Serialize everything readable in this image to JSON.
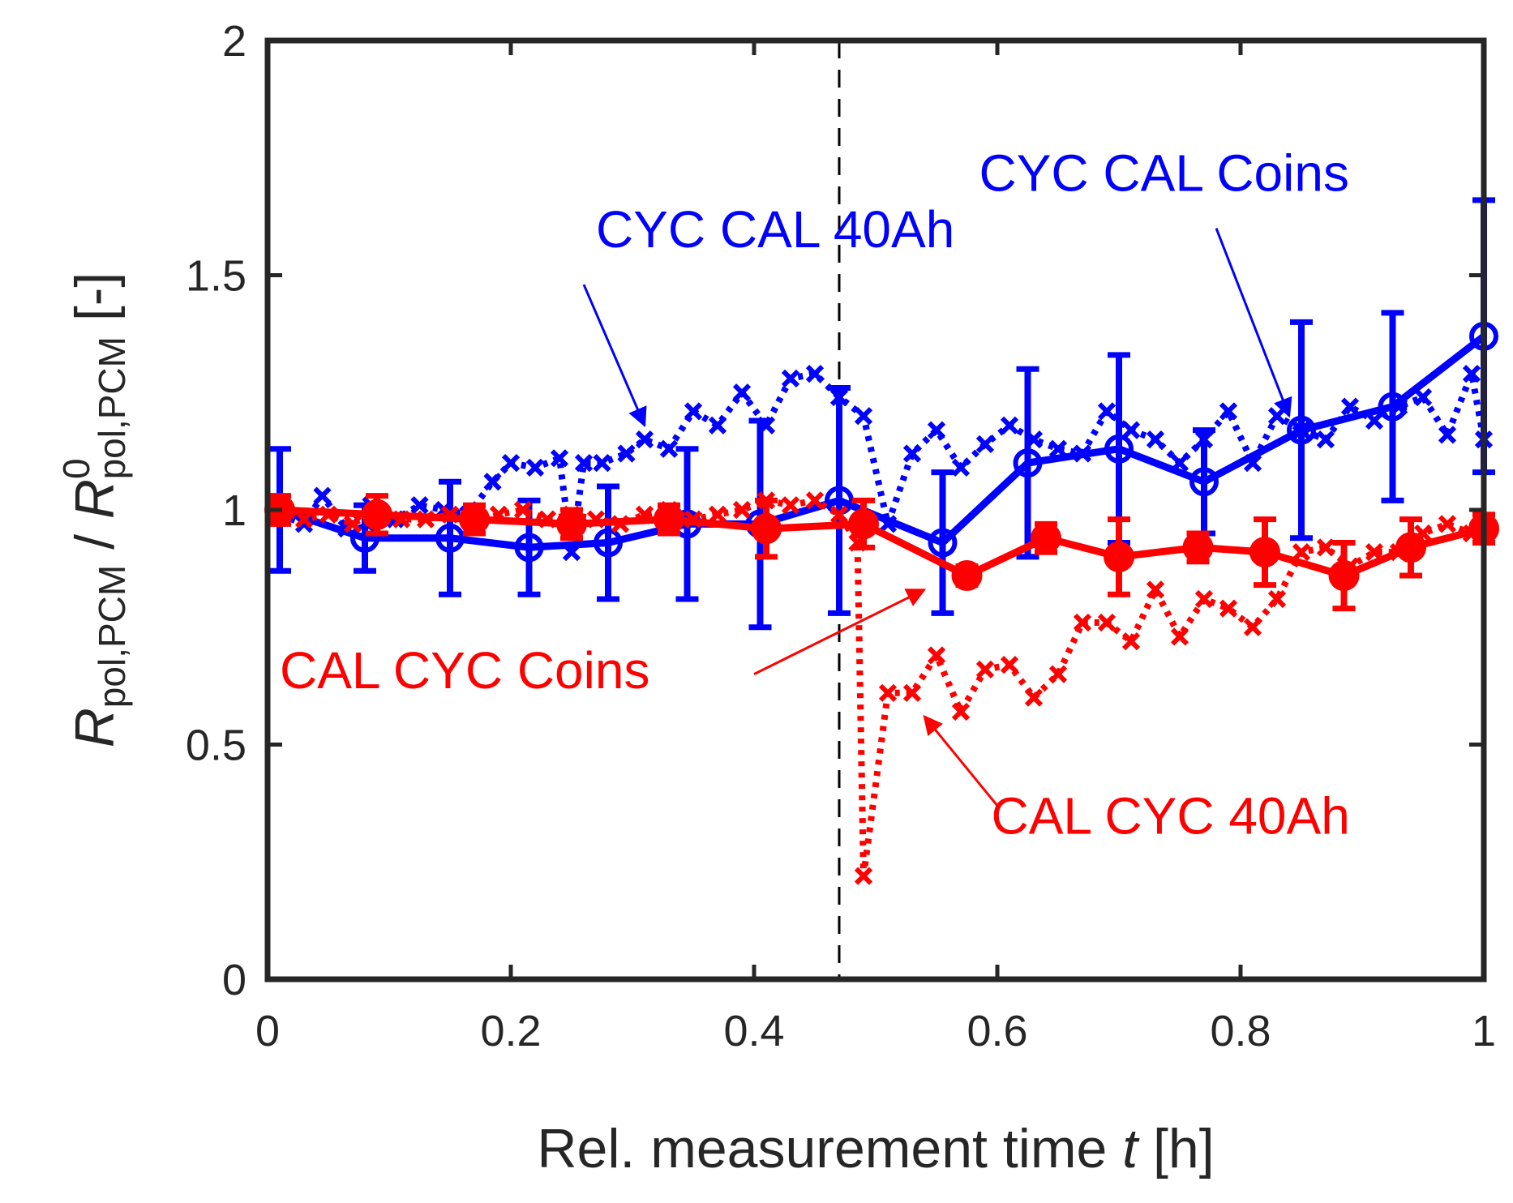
{
  "chart_data": {
    "type": "line",
    "xlabel": {
      "main": "Rel. measurement time ",
      "var": "t",
      "unit": " [h]"
    },
    "ylabel": {
      "num": "R",
      "num_sub": "pol,PCM",
      "sep": " / ",
      "den": "R",
      "den_sup": "0",
      "den_sub": "pol,PCM",
      "unit": " [-]"
    },
    "xlim": [
      0,
      1
    ],
    "ylim": [
      0,
      2
    ],
    "xticks": [
      0,
      0.2,
      0.4,
      0.6,
      0.8,
      1
    ],
    "xtick_labels": [
      "0",
      "0.2",
      "0.4",
      "0.6",
      "0.8",
      "1"
    ],
    "yticks": [
      0,
      0.5,
      1,
      1.5,
      2
    ],
    "ytick_labels": [
      "0",
      "0.5",
      "1",
      "1.5",
      "2"
    ],
    "vline_x": 0.47,
    "colors": {
      "blue": "#0000ff",
      "red": "#ff0000",
      "axis": "#262626"
    },
    "series": [
      {
        "name": "CYC CAL 40Ah",
        "color": "#0000ff",
        "line": "dotted",
        "marker": "x",
        "x": [
          0.01,
          0.03,
          0.045,
          0.065,
          0.085,
          0.105,
          0.125,
          0.145,
          0.165,
          0.185,
          0.2,
          0.22,
          0.24,
          0.25,
          0.26,
          0.275,
          0.295,
          0.31,
          0.33,
          0.35,
          0.37,
          0.39,
          0.41,
          0.43,
          0.45,
          0.47,
          0.49,
          0.51,
          0.53,
          0.55,
          0.57,
          0.59,
          0.61,
          0.63,
          0.65,
          0.67,
          0.69,
          0.71,
          0.73,
          0.75,
          0.77,
          0.79,
          0.81,
          0.83,
          0.85,
          0.87,
          0.89,
          0.91,
          0.93,
          0.95,
          0.97,
          0.99,
          1.0
        ],
        "y": [
          0.99,
          0.97,
          1.03,
          0.96,
          1.01,
          0.98,
          1.01,
          1.0,
          0.99,
          1.06,
          1.1,
          1.09,
          1.11,
          0.91,
          1.1,
          1.1,
          1.12,
          1.15,
          1.13,
          1.21,
          1.18,
          1.25,
          1.18,
          1.28,
          1.29,
          1.24,
          1.2,
          0.97,
          1.12,
          1.17,
          1.09,
          1.14,
          1.18,
          1.15,
          1.13,
          1.12,
          1.21,
          1.17,
          1.15,
          1.1,
          1.15,
          1.21,
          1.1,
          1.2,
          1.17,
          1.15,
          1.22,
          1.19,
          1.22,
          1.24,
          1.16,
          1.29,
          1.15
        ]
      },
      {
        "name": "CYC CAL Coins",
        "color": "#0000ff",
        "line": "solid",
        "marker": "o",
        "x": [
          0.01,
          0.08,
          0.15,
          0.215,
          0.28,
          0.345,
          0.405,
          0.47,
          0.555,
          0.625,
          0.7,
          0.77,
          0.85,
          0.925,
          1.0
        ],
        "y": [
          1.0,
          0.94,
          0.94,
          0.92,
          0.93,
          0.97,
          0.97,
          1.02,
          0.93,
          1.1,
          1.13,
          1.06,
          1.17,
          1.22,
          1.37
        ],
        "err": [
          0.13,
          0.07,
          0.12,
          0.1,
          0.12,
          0.16,
          0.22,
          0.24,
          0.15,
          0.2,
          0.2,
          0.11,
          0.23,
          0.2,
          0.29
        ]
      },
      {
        "name": "CAL CYC 40Ah",
        "color": "#ff0000",
        "line": "dotted",
        "marker": "x",
        "x": [
          0.01,
          0.03,
          0.05,
          0.07,
          0.09,
          0.11,
          0.13,
          0.15,
          0.17,
          0.19,
          0.21,
          0.23,
          0.25,
          0.27,
          0.29,
          0.31,
          0.33,
          0.35,
          0.37,
          0.39,
          0.41,
          0.43,
          0.45,
          0.47,
          0.485,
          0.49,
          0.51,
          0.53,
          0.55,
          0.57,
          0.59,
          0.61,
          0.63,
          0.65,
          0.67,
          0.69,
          0.71,
          0.73,
          0.75,
          0.77,
          0.79,
          0.81,
          0.83,
          0.85,
          0.87,
          0.89,
          0.91,
          0.93,
          0.95,
          0.97,
          0.99,
          1.0
        ],
        "y": [
          1.0,
          0.98,
          0.99,
          0.97,
          1.0,
          0.98,
          0.98,
          0.99,
          0.97,
          0.99,
          1.0,
          0.98,
          0.99,
          0.98,
          0.97,
          0.99,
          1.0,
          0.98,
          0.99,
          1.0,
          1.02,
          1.01,
          1.02,
          0.99,
          0.93,
          0.22,
          0.61,
          0.61,
          0.69,
          0.57,
          0.66,
          0.67,
          0.6,
          0.65,
          0.76,
          0.76,
          0.72,
          0.83,
          0.73,
          0.81,
          0.79,
          0.75,
          0.81,
          0.91,
          0.92,
          0.88,
          0.91,
          0.91,
          0.95,
          0.97,
          0.95,
          0.97
        ]
      },
      {
        "name": "CAL CYC Coins",
        "color": "#ff0000",
        "line": "solid",
        "marker": "o",
        "x": [
          0.01,
          0.09,
          0.17,
          0.25,
          0.33,
          0.41,
          0.49,
          0.575,
          0.64,
          0.7,
          0.765,
          0.82,
          0.885,
          0.94,
          1.0
        ],
        "y": [
          1.0,
          0.99,
          0.98,
          0.97,
          0.98,
          0.96,
          0.97,
          0.86,
          0.94,
          0.9,
          0.92,
          0.91,
          0.86,
          0.92,
          0.96
        ],
        "err": [
          0.03,
          0.04,
          0.03,
          0.03,
          0.03,
          0.06,
          0.05,
          0.02,
          0.03,
          0.08,
          0.03,
          0.07,
          0.07,
          0.06,
          0.03
        ]
      }
    ],
    "annotations": [
      {
        "text": "CYC CAL 40Ah",
        "color": "#0000ff",
        "anchor_x": 0.27,
        "anchor_y": 1.56,
        "arrow_from": [
          0.26,
          1.48
        ],
        "arrow_to": [
          0.31,
          1.18
        ]
      },
      {
        "text": "CYC CAL Coins",
        "color": "#0000ff",
        "anchor_x": 0.585,
        "anchor_y": 1.68,
        "arrow_from": [
          0.78,
          1.6
        ],
        "arrow_to": [
          0.84,
          1.2
        ]
      },
      {
        "text": "CAL CYC Coins",
        "color": "#ff0000",
        "anchor_x": 0.01,
        "anchor_y": 0.62,
        "arrow_from": [
          0.4,
          0.65
        ],
        "arrow_to": [
          0.54,
          0.83
        ]
      },
      {
        "text": "CAL CYC 40Ah",
        "color": "#ff0000",
        "anchor_x": 0.595,
        "anchor_y": 0.31,
        "arrow_from": [
          0.6,
          0.37
        ],
        "arrow_to": [
          0.54,
          0.56
        ]
      }
    ]
  }
}
